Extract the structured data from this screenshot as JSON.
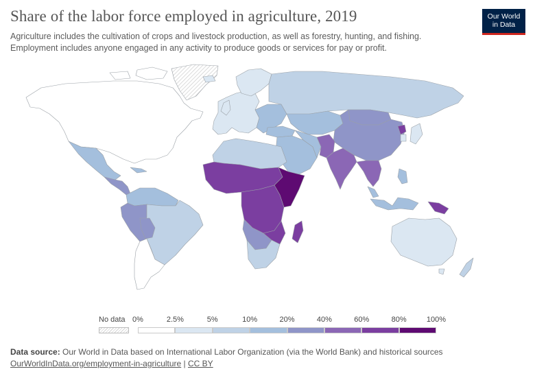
{
  "header": {
    "title": "Share of the labor force employed in agriculture, 2019",
    "subtitle_line1": "Agriculture includes the cultivation of crops and livestock production, as well as forestry, hunting, and fishing.",
    "subtitle_line2": "Employment includes anyone engaged in any activity to produce goods or services for pay or profit."
  },
  "logo": {
    "line1": "Our World",
    "line2": "in Data",
    "bg": "#002147",
    "accent": "#ce261e"
  },
  "legend": {
    "no_data_label": "No data",
    "ticks": [
      "0%",
      "2.5%",
      "5%",
      "10%",
      "20%",
      "40%",
      "60%",
      "80%",
      "100%"
    ],
    "bins": [
      {
        "from": "0%",
        "to": "2.5%",
        "color": "#ffffff"
      },
      {
        "from": "2.5%",
        "to": "5%",
        "color": "#dbe7f2"
      },
      {
        "from": "5%",
        "to": "10%",
        "color": "#bfd2e6"
      },
      {
        "from": "10%",
        "to": "20%",
        "color": "#a4bfdd"
      },
      {
        "from": "20%",
        "to": "40%",
        "color": "#8f95c8"
      },
      {
        "from": "40%",
        "to": "60%",
        "color": "#8b67b5"
      },
      {
        "from": "60%",
        "to": "80%",
        "color": "#7b3ea0"
      },
      {
        "from": "80%",
        "to": "100%",
        "color": "#5e0a72"
      }
    ]
  },
  "source": {
    "label": "Data source:",
    "text": " Our World in Data based on International Labor Organization (via the World Bank) and historical sources",
    "link": "OurWorldInData.org/employment-in-agriculture",
    "separator": " | ",
    "license": "CC BY"
  },
  "map_regions": {
    "north_america": "#ffffff",
    "greenland": "no-data",
    "mexico": "#a4bfdd",
    "central_america": "#8f95c8",
    "south_america_north": "#a4bfdd",
    "andes_west": "#8f95c8",
    "brazil": "#bfd2e6",
    "argentina": "#ffffff",
    "europe_west": "#dbe7f2",
    "europe_east": "#a4bfdd",
    "russia": "#bfd2e6",
    "central_asia": "#a4bfdd",
    "china_mongolia": "#8f95c8",
    "middle_east": "#a4bfdd",
    "afghanistan_pakistan": "#8b67b5",
    "india": "#8b67b5",
    "southeast_asia": "#8b67b5",
    "north_korea": "#7b3ea0",
    "japan_korea": "#dbe7f2",
    "indonesia": "#a4bfdd",
    "papua_new_guinea": "#7b3ea0",
    "australia": "#dbe7f2",
    "new_zealand": "#bfd2e6",
    "north_africa": "#bfd2e6",
    "sahel_west_africa": "#7b3ea0",
    "ethiopia_somalia": "#5e0a72",
    "central_africa": "#7b3ea0",
    "southern_africa": "#8f95c8",
    "south_africa": "#bfd2e6",
    "madagascar": "#7b3ea0"
  }
}
